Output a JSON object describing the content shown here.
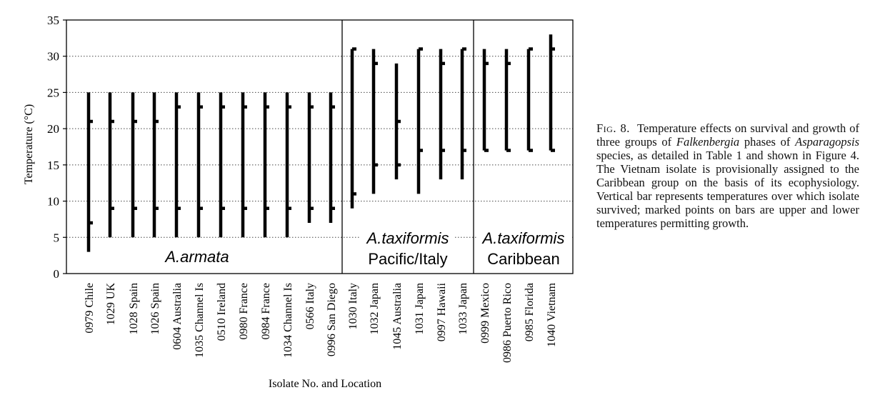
{
  "chart_data": {
    "type": "range-bar",
    "ylabel": "Temperature (°C)",
    "xlabel": "Isolate No. and Location",
    "ylim": [
      0,
      35
    ],
    "yticks": [
      0,
      5,
      10,
      15,
      20,
      25,
      30,
      35
    ],
    "grid": "dotted horizontal",
    "groups": [
      {
        "label_line1": "A.armata",
        "label_line2": "",
        "count": 12
      },
      {
        "label_line1": "A.taxiformis",
        "label_line2": "Pacific/Italy",
        "count": 6
      },
      {
        "label_line1": "A.taxiformis",
        "label_line2": "Caribbean",
        "count": 4
      }
    ],
    "isolates": [
      {
        "label": "0979 Chile",
        "survival": [
          3,
          25
        ],
        "growth": [
          7,
          21
        ]
      },
      {
        "label": "1029 UK",
        "survival": [
          5,
          25
        ],
        "growth": [
          9,
          21
        ]
      },
      {
        "label": "1028 Spain",
        "survival": [
          5,
          25
        ],
        "growth": [
          9,
          21
        ]
      },
      {
        "label": "1026 Spain",
        "survival": [
          5,
          25
        ],
        "growth": [
          9,
          21
        ]
      },
      {
        "label": "0604 Australia",
        "survival": [
          5,
          25
        ],
        "growth": [
          9,
          23
        ]
      },
      {
        "label": "1035 Channel Is",
        "survival": [
          5,
          25
        ],
        "growth": [
          9,
          23
        ]
      },
      {
        "label": "0510 Ireland",
        "survival": [
          5,
          25
        ],
        "growth": [
          9,
          23
        ]
      },
      {
        "label": "0980 France",
        "survival": [
          5,
          25
        ],
        "growth": [
          9,
          23
        ]
      },
      {
        "label": "0984 France",
        "survival": [
          5,
          25
        ],
        "growth": [
          9,
          23
        ]
      },
      {
        "label": "1034 Channel Is",
        "survival": [
          5,
          25
        ],
        "growth": [
          9,
          23
        ]
      },
      {
        "label": "0566 Italy",
        "survival": [
          7,
          25
        ],
        "growth": [
          9,
          23
        ]
      },
      {
        "label": "0996 San Diego",
        "survival": [
          7,
          25
        ],
        "growth": [
          9,
          23
        ]
      },
      {
        "label": "1030 Italy",
        "survival": [
          9,
          31
        ],
        "growth": [
          11,
          31
        ]
      },
      {
        "label": "1032 Japan",
        "survival": [
          11,
          31
        ],
        "growth": [
          15,
          29
        ]
      },
      {
        "label": "1045 Australia",
        "survival": [
          13,
          29
        ],
        "growth": [
          15,
          21
        ]
      },
      {
        "label": "1031 Japan",
        "survival": [
          11,
          31
        ],
        "growth": [
          17,
          31
        ]
      },
      {
        "label": "0997 Hawaii",
        "survival": [
          13,
          31
        ],
        "growth": [
          17,
          29
        ]
      },
      {
        "label": "1033 Japan",
        "survival": [
          13,
          31
        ],
        "growth": [
          17,
          31
        ]
      },
      {
        "label": "0999 Mexico",
        "survival": [
          17,
          31
        ],
        "growth": [
          17,
          29
        ]
      },
      {
        "label": "0986 Puerto Rico",
        "survival": [
          17,
          31
        ],
        "growth": [
          17,
          29
        ]
      },
      {
        "label": "0985 Florida",
        "survival": [
          17,
          31
        ],
        "growth": [
          17,
          31
        ]
      },
      {
        "label": "1040 Vietnam",
        "survival": [
          17,
          33
        ],
        "growth": [
          17,
          31
        ]
      }
    ]
  },
  "caption": {
    "label": "Fig. 8.",
    "text_1": "Temperature effects on survival and growth of three groups of ",
    "italic_1": "Falkenbergia",
    "text_2": " phases of ",
    "italic_2": "Asparagopsis",
    "text_3": " species, as detailed in Table 1 and shown in Figure 4. The Vietnam isolate is provisionally assigned to the Caribbean group on the basis of its ecophysiology. Vertical bar represents temperatures over which isolate survived; marked points on bars are upper and lower temperatures permitting growth."
  }
}
